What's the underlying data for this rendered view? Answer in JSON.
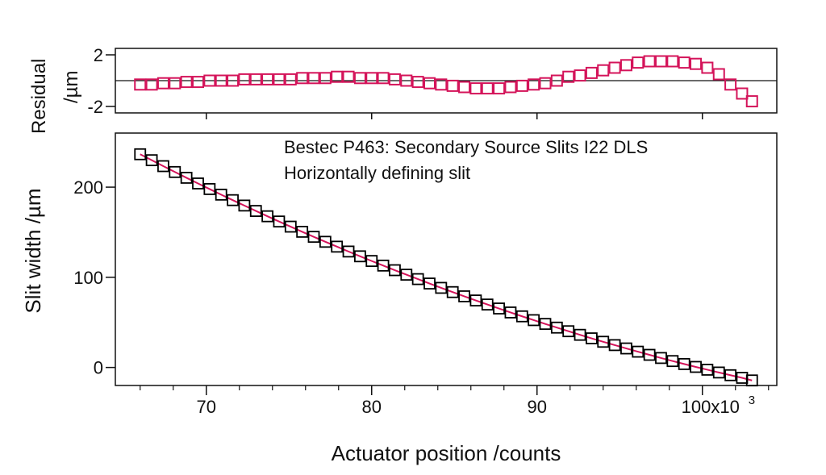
{
  "chart_data": [
    {
      "type": "scatter",
      "panel": "residual",
      "ylabel_line1": "Residual",
      "ylabel_line2": "/µm",
      "ylim": [
        -2.5,
        2.5
      ],
      "yticks": [
        "2",
        "-2"
      ],
      "ytick_values": [
        2,
        -2
      ],
      "zero_line": true,
      "marker": "open-square",
      "marker_color": "#d4145a",
      "x": [
        66,
        66.7,
        67.4,
        68.1,
        68.8,
        69.5,
        70.2,
        70.9,
        71.6,
        72.3,
        73,
        73.7,
        74.4,
        75.1,
        75.8,
        76.5,
        77.2,
        77.9,
        78.6,
        79.3,
        80,
        80.7,
        81.4,
        82.1,
        82.8,
        83.5,
        84.2,
        84.9,
        85.6,
        86.3,
        87,
        87.7,
        88.4,
        89.1,
        89.8,
        90.5,
        91.2,
        91.9,
        92.6,
        93.3,
        94,
        94.7,
        95.4,
        96.1,
        96.8,
        97.5,
        98.2,
        98.9,
        99.6,
        100.3,
        101,
        101.7,
        102.4,
        103
      ],
      "y": [
        -0.3,
        -0.3,
        -0.2,
        -0.2,
        -0.1,
        -0.1,
        0,
        0,
        0,
        0.1,
        0.1,
        0.1,
        0.1,
        0.1,
        0.2,
        0.2,
        0.2,
        0.3,
        0.3,
        0.2,
        0.2,
        0.2,
        0.1,
        0,
        -0.1,
        -0.2,
        -0.3,
        -0.4,
        -0.5,
        -0.6,
        -0.6,
        -0.6,
        -0.5,
        -0.4,
        -0.3,
        -0.2,
        0,
        0.3,
        0.4,
        0.6,
        0.8,
        1,
        1.2,
        1.4,
        1.5,
        1.5,
        1.5,
        1.4,
        1.3,
        1,
        0.5,
        -0.3,
        -1,
        -1.6
      ]
    },
    {
      "type": "scatter",
      "panel": "main",
      "ylabel": "Slit width /µm",
      "xlabel": "Actuator position /counts",
      "xlim": [
        64.5,
        104.5
      ],
      "ylim": [
        -20,
        260
      ],
      "xticks": [
        "70",
        "80",
        "90",
        "100x10"
      ],
      "xtick_values": [
        70,
        80,
        90,
        100
      ],
      "x_exponent": "3",
      "yticks": [
        "0",
        "100",
        "200"
      ],
      "ytick_values": [
        0,
        100,
        200
      ],
      "annotation_line1": "Bestec P463: Secondary Source Slits I22 DLS",
      "annotation_line2": "Horizontally defining slit",
      "marker": "open-square",
      "marker_color": "#000000",
      "fit_color": "#d4145a",
      "x": [
        66,
        66.7,
        67.4,
        68.1,
        68.8,
        69.5,
        70.2,
        70.9,
        71.6,
        72.3,
        73,
        73.7,
        74.4,
        75.1,
        75.8,
        76.5,
        77.2,
        77.9,
        78.6,
        79.3,
        80,
        80.7,
        81.4,
        82.1,
        82.8,
        83.5,
        84.2,
        84.9,
        85.6,
        86.3,
        87,
        87.7,
        88.4,
        89.1,
        89.8,
        90.5,
        91.2,
        91.9,
        92.6,
        93.3,
        94,
        94.7,
        95.4,
        96.1,
        96.8,
        97.5,
        98.2,
        98.9,
        99.6,
        100.3,
        101,
        101.7,
        102.4,
        103
      ],
      "y": [
        236.5,
        229.9,
        223.3,
        216.8,
        210.4,
        204.1,
        197.9,
        191.7,
        185.6,
        179.6,
        173.6,
        167.7,
        161.9,
        156.2,
        150.5,
        144.9,
        139.4,
        134,
        128.6,
        123.3,
        118.1,
        113,
        107.9,
        102.9,
        98,
        93.1,
        88.3,
        83.6,
        78.9,
        74.3,
        69.8,
        65.4,
        61,
        56.7,
        52.5,
        48.3,
        44.2,
        40.2,
        36.2,
        32.3,
        28.5,
        24.8,
        21.1,
        17.5,
        14,
        10.5,
        7.1,
        3.8,
        0.6,
        -2.5,
        -5.6,
        -8.6,
        -11.5,
        -14.4
      ]
    }
  ]
}
